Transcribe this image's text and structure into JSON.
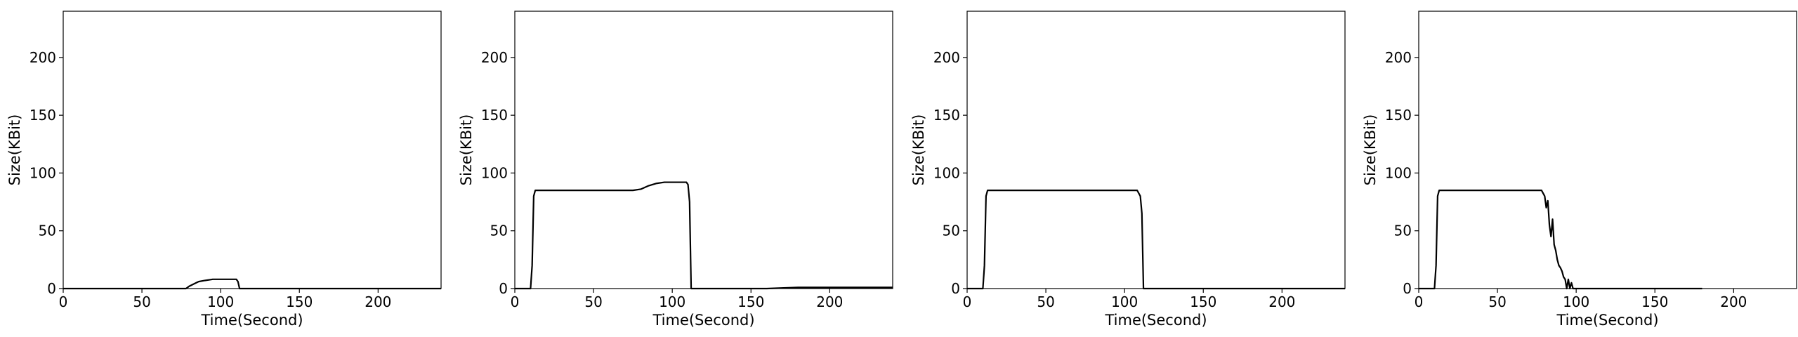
{
  "chart_data": [
    {
      "type": "line",
      "xlabel": "Time(Second)",
      "ylabel": "Size(KBit)",
      "xlim": [
        0,
        240
      ],
      "ylim": [
        0,
        240
      ],
      "xticks": [
        0,
        50,
        100,
        150,
        200
      ],
      "yticks": [
        0,
        50,
        100,
        150,
        200
      ],
      "grid": false,
      "series": [
        {
          "color": "#000000",
          "x": [
            0,
            10,
            20,
            30,
            40,
            50,
            60,
            70,
            78,
            80,
            83,
            86,
            90,
            95,
            100,
            105,
            110,
            111,
            112,
            120,
            140,
            160,
            180,
            200,
            220,
            240
          ],
          "y": [
            0,
            0,
            0,
            0,
            0,
            0,
            0,
            0,
            0,
            2,
            4,
            6,
            7,
            8,
            8,
            8,
            8,
            6,
            0,
            0,
            0,
            0,
            0,
            0,
            0,
            0
          ]
        }
      ]
    },
    {
      "type": "line",
      "xlabel": "Time(Second)",
      "ylabel": "Size(KBit)",
      "xlim": [
        0,
        240
      ],
      "ylim": [
        0,
        240
      ],
      "xticks": [
        0,
        50,
        100,
        150,
        200
      ],
      "yticks": [
        0,
        50,
        100,
        150,
        200
      ],
      "grid": false,
      "series": [
        {
          "color": "#000000",
          "x": [
            0,
            5,
            10,
            11,
            12,
            13,
            20,
            30,
            40,
            50,
            60,
            70,
            75,
            80,
            85,
            90,
            95,
            100,
            105,
            109,
            110,
            111,
            112,
            113,
            120,
            140,
            160,
            180,
            200,
            220,
            240
          ],
          "y": [
            0,
            0,
            0,
            20,
            80,
            85,
            85,
            85,
            85,
            85,
            85,
            85,
            85,
            86,
            89,
            91,
            92,
            92,
            92,
            92,
            90,
            75,
            0,
            0,
            0,
            0,
            0,
            1,
            1,
            1,
            1
          ]
        }
      ]
    },
    {
      "type": "line",
      "xlabel": "Time(Second)",
      "ylabel": "Size(KBit)",
      "xlim": [
        0,
        240
      ],
      "ylim": [
        0,
        240
      ],
      "xticks": [
        0,
        50,
        100,
        150,
        200
      ],
      "yticks": [
        0,
        50,
        100,
        150,
        200
      ],
      "grid": false,
      "series": [
        {
          "color": "#000000",
          "x": [
            0,
            5,
            10,
            11,
            12,
            13,
            20,
            30,
            40,
            50,
            60,
            70,
            80,
            90,
            100,
            108,
            110,
            111,
            112,
            120,
            140,
            160,
            180,
            200,
            220,
            240
          ],
          "y": [
            0,
            0,
            0,
            20,
            80,
            85,
            85,
            85,
            85,
            85,
            85,
            85,
            85,
            85,
            85,
            85,
            80,
            65,
            0,
            0,
            0,
            0,
            0,
            0,
            0,
            0
          ]
        }
      ]
    },
    {
      "type": "line",
      "xlabel": "Time(Second)",
      "ylabel": "Size(KBit)",
      "xlim": [
        0,
        240
      ],
      "ylim": [
        0,
        240
      ],
      "xticks": [
        0,
        50,
        100,
        150,
        200
      ],
      "yticks": [
        0,
        50,
        100,
        150,
        200
      ],
      "grid": false,
      "series": [
        {
          "color": "#000000",
          "x": [
            0,
            5,
            10,
            11,
            12,
            13,
            20,
            30,
            40,
            50,
            60,
            70,
            78,
            80,
            81,
            82,
            83,
            84,
            85,
            86,
            87,
            88,
            89,
            90,
            91,
            92,
            93,
            94,
            95,
            96,
            97,
            98,
            99,
            100,
            110,
            120,
            140,
            160,
            180
          ],
          "y": [
            0,
            0,
            0,
            20,
            80,
            85,
            85,
            85,
            85,
            85,
            85,
            85,
            85,
            80,
            70,
            76,
            55,
            45,
            60,
            38,
            33,
            25,
            20,
            18,
            15,
            10,
            8,
            0,
            8,
            0,
            5,
            0,
            0,
            0,
            0,
            0,
            0,
            0,
            0
          ]
        }
      ]
    }
  ]
}
